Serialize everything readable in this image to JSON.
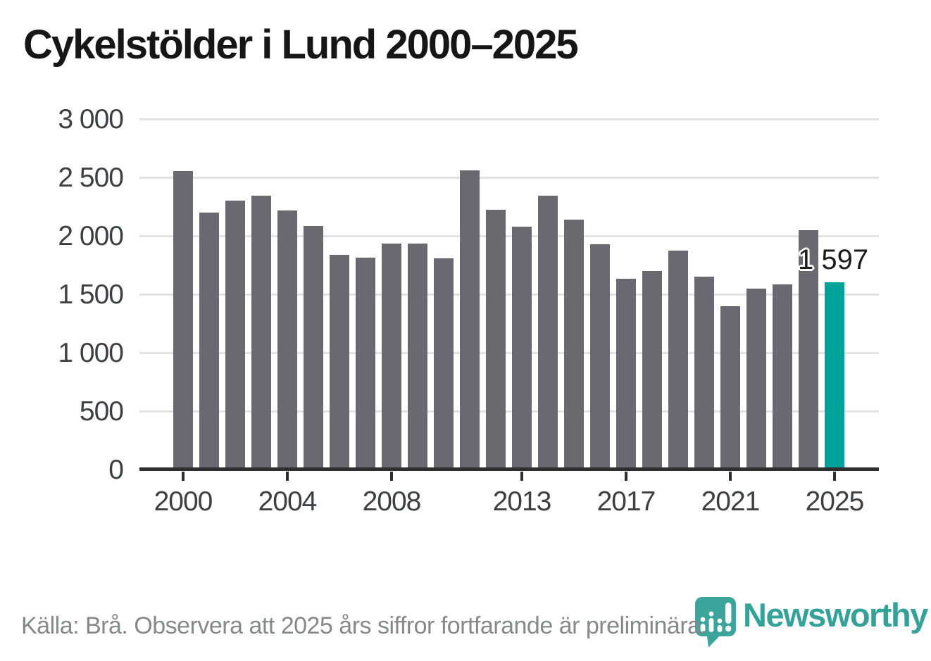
{
  "title": "Cykelstölder i Lund 2000–2025",
  "chart_data": {
    "type": "bar",
    "title": "Cykelstölder i Lund 2000–2025",
    "categories": [
      2000,
      2001,
      2002,
      2003,
      2004,
      2005,
      2006,
      2007,
      2008,
      2009,
      2010,
      2011,
      2012,
      2013,
      2014,
      2015,
      2016,
      2017,
      2018,
      2019,
      2020,
      2021,
      2022,
      2023,
      2024,
      2025
    ],
    "values": [
      2550,
      2190,
      2295,
      2335,
      2210,
      2080,
      1830,
      1805,
      1925,
      1925,
      1800,
      2555,
      2215,
      2075,
      2340,
      2135,
      1920,
      1625,
      1695,
      1870,
      1645,
      1390,
      1545,
      1580,
      2040,
      1597
    ],
    "bar_color": "#6b6970",
    "highlight_year": 2025,
    "highlight_color": "#00a29a",
    "ylim": [
      0,
      3000
    ],
    "grid": true,
    "legend_position": "none",
    "xlabel": "",
    "ylabel": "",
    "y_tick_values": [
      3000,
      2500,
      2000,
      1500,
      1000,
      500,
      0
    ],
    "y_tick_labels": [
      "3 000",
      "2 500",
      "2 000",
      "1 500",
      "1 000",
      "500",
      "0"
    ],
    "x_tick_years": [
      2000,
      2004,
      2008,
      2013,
      2017,
      2021,
      2025
    ],
    "x_tick_labels": [
      "2000",
      "2004",
      "2008",
      "2013",
      "2017",
      "2021",
      "2025"
    ],
    "annotation": {
      "text": "1 597",
      "year": 2025,
      "value": 1597
    }
  },
  "footer": {
    "source_note": "Källa: Brå. Observera att 2025 års siffror fortfarande är preliminära."
  },
  "brand": {
    "name": "Newsworthy",
    "color": "#35a29a"
  }
}
